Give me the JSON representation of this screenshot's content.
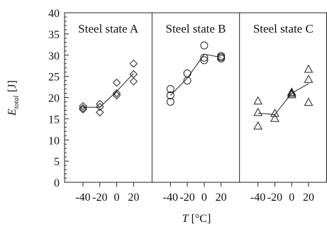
{
  "chart_data": {
    "type": "scatter",
    "ylabel_symbol": "E",
    "ylabel_subscript": "total",
    "ylabel_unit": "[J]",
    "xlabel_symbol": "T",
    "xlabel_unit": "[°C]",
    "ylim": [
      0,
      40
    ],
    "yticks": [
      0,
      5,
      10,
      15,
      20,
      25,
      30,
      35,
      40
    ],
    "xticks": [
      -40,
      -20,
      0,
      20
    ],
    "xtick_labels": [
      "-40",
      "-20",
      "0",
      "20"
    ],
    "grid": false,
    "panels": [
      {
        "title": "Steel state A",
        "marker": "diamond",
        "points": [
          {
            "x": -40,
            "y": 17.5
          },
          {
            "x": -40,
            "y": 18.0
          },
          {
            "x": -40,
            "y": 17.2
          },
          {
            "x": -20,
            "y": 18.5
          },
          {
            "x": -20,
            "y": 17.8
          },
          {
            "x": -20,
            "y": 16.5
          },
          {
            "x": 0,
            "y": 23.5
          },
          {
            "x": 0,
            "y": 21.0
          },
          {
            "x": 0,
            "y": 20.5
          },
          {
            "x": 20,
            "y": 28.0
          },
          {
            "x": 20,
            "y": 25.5
          },
          {
            "x": 20,
            "y": 23.8
          }
        ],
        "trend": [
          {
            "x": -40,
            "y": 17.7
          },
          {
            "x": -20,
            "y": 17.7
          },
          {
            "x": 0,
            "y": 21.5
          },
          {
            "x": 20,
            "y": 25.7
          }
        ]
      },
      {
        "title": "Steel state B",
        "marker": "circle",
        "points": [
          {
            "x": -40,
            "y": 22.0
          },
          {
            "x": -40,
            "y": 20.5
          },
          {
            "x": -40,
            "y": 19.0
          },
          {
            "x": -20,
            "y": 25.7
          },
          {
            "x": -20,
            "y": 24.0
          },
          {
            "x": 0,
            "y": 32.3
          },
          {
            "x": 0,
            "y": 29.4
          },
          {
            "x": 0,
            "y": 28.8
          },
          {
            "x": 20,
            "y": 29.8
          },
          {
            "x": 20,
            "y": 29.5
          },
          {
            "x": 20,
            "y": 29.2
          }
        ],
        "trend": [
          {
            "x": -40,
            "y": 20.5
          },
          {
            "x": -20,
            "y": 24.6
          },
          {
            "x": 0,
            "y": 30.2
          },
          {
            "x": 20,
            "y": 29.5
          }
        ]
      },
      {
        "title": "Steel state C",
        "marker": "triangle",
        "points": [
          {
            "x": -40,
            "y": 19.2
          },
          {
            "x": -40,
            "y": 16.5
          },
          {
            "x": -40,
            "y": 13.3
          },
          {
            "x": -20,
            "y": 16.3
          },
          {
            "x": -20,
            "y": 15.1
          },
          {
            "x": 0,
            "y": 21.3
          },
          {
            "x": 0,
            "y": 21.0
          },
          {
            "x": 0,
            "y": 20.7
          },
          {
            "x": 20,
            "y": 26.7
          },
          {
            "x": 20,
            "y": 24.3
          },
          {
            "x": 20,
            "y": 18.9
          }
        ],
        "trend": [
          {
            "x": -40,
            "y": 16.3
          },
          {
            "x": -20,
            "y": 16.0
          },
          {
            "x": 0,
            "y": 21.0
          },
          {
            "x": 20,
            "y": 23.3
          }
        ]
      }
    ]
  }
}
